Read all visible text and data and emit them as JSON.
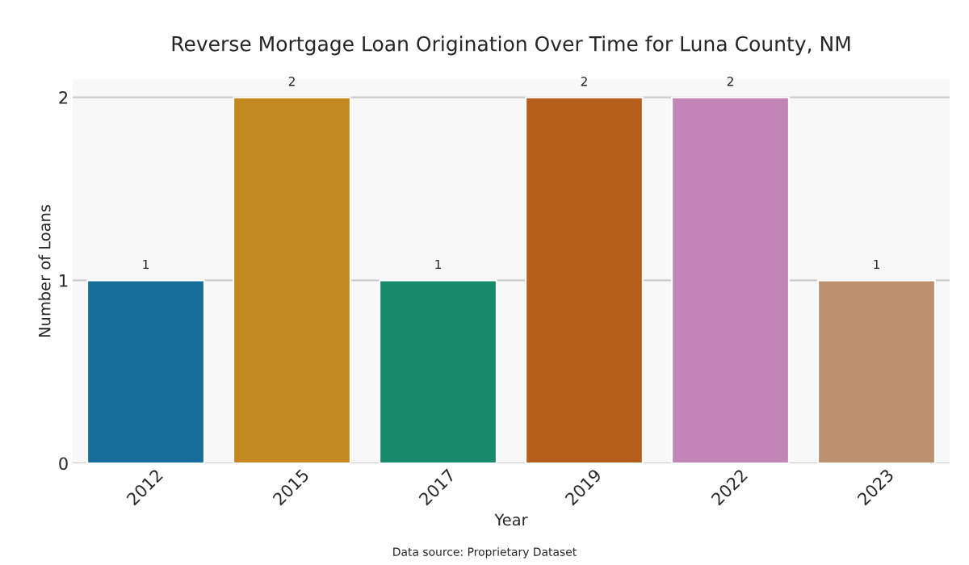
{
  "chart_data": {
    "type": "bar",
    "title": "Reverse Mortgage Loan Origination Over Time for Luna County, NM",
    "xlabel": "Year",
    "ylabel": "Number of Loans",
    "categories": [
      "2012",
      "2015",
      "2017",
      "2019",
      "2022",
      "2023"
    ],
    "values": [
      1,
      2,
      1,
      2,
      2,
      1
    ],
    "colors": [
      "#176d9c",
      "#c38820",
      "#178b6b",
      "#b65f1c",
      "#c384b6",
      "#bc916f"
    ],
    "ylim": [
      0,
      2.1
    ],
    "yticks": [
      0,
      1,
      2
    ],
    "grid": "y",
    "data_labels": true,
    "annotations": [
      "Data source: Proprietary Dataset"
    ]
  }
}
